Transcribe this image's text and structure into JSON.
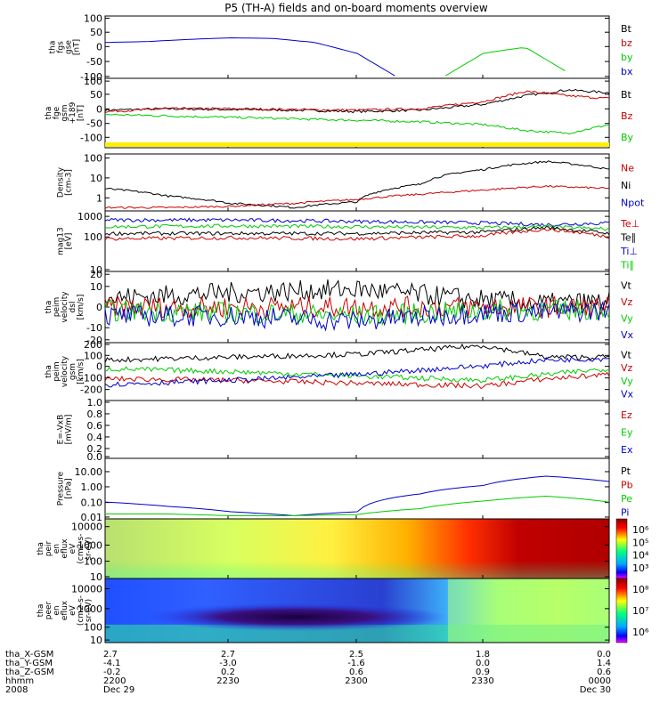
{
  "title": "P5 (TH-A) fields and on-board moments overview",
  "time_axis": {
    "ticks": [
      "2200",
      "2230",
      "2300",
      "2330",
      "0000"
    ],
    "rows": [
      {
        "label": "tha_X-GSM",
        "values": [
          "2.7",
          "2.7",
          "2.5",
          "1.8",
          "0.0"
        ]
      },
      {
        "label": "tha_Y-GSM",
        "values": [
          "-4.1",
          "-3.0",
          "-1.6",
          "0.0",
          "1.4"
        ]
      },
      {
        "label": "tha_Z-GSM",
        "values": [
          "-0.2",
          "0.2",
          "0.6",
          "0.9",
          "0.6"
        ]
      },
      {
        "label": "hhmm",
        "values": [
          "2200",
          "2230",
          "2300",
          "2330",
          "0000"
        ]
      },
      {
        "label": "2008",
        "values": [
          "Dec 29",
          "",
          "",
          "",
          "Dec 30"
        ]
      }
    ]
  },
  "panels": [
    {
      "id": "fgs",
      "ylabel": [
        "tha",
        "fgs",
        "gse",
        "[nT]"
      ],
      "ticks": [
        "100",
        "50",
        "0",
        "-50",
        "-100"
      ],
      "legend": [
        {
          "text": "Bt",
          "color": "#000000"
        },
        {
          "text": "bz",
          "color": "#cc0000"
        },
        {
          "text": "by",
          "color": "#00cc00"
        },
        {
          "text": "bx",
          "color": "#0000cc"
        }
      ]
    },
    {
      "id": "fge",
      "ylabel": [
        "tha",
        "fge",
        "gsm",
        "+189",
        "[nT]"
      ],
      "ticks": [
        "100",
        "50",
        "0",
        "-50",
        "-100"
      ],
      "legend": [
        {
          "text": "Bt",
          "color": "#000000"
        },
        {
          "text": "Bz",
          "color": "#cc0000"
        },
        {
          "text": "By",
          "color": "#00cc00"
        }
      ]
    },
    {
      "id": "density",
      "ylabel": [
        "Density",
        "[cm-3]"
      ],
      "ticks": [
        "100",
        "10",
        "1"
      ],
      "legend": [
        {
          "text": "Ne",
          "color": "#cc0000"
        },
        {
          "text": "Ni",
          "color": "#000000"
        },
        {
          "text": "Npot",
          "color": "#0000cc"
        }
      ]
    },
    {
      "id": "temp",
      "ylabel": [
        "mag13",
        "[eV]"
      ],
      "ticks": [
        "1000",
        "100",
        "10"
      ],
      "legend": [
        {
          "text": "Te⊥",
          "color": "#cc0000"
        },
        {
          "text": "Te∥",
          "color": "#000000"
        },
        {
          "text": "Ti⊥",
          "color": "#0000cc"
        },
        {
          "text": "Ti∥",
          "color": "#00cc00"
        }
      ]
    },
    {
      "id": "vel_e",
      "ylabel": [
        "tha",
        "peim",
        "velocity",
        "dsl",
        "[km/s]"
      ],
      "ticks": [
        "20",
        "10",
        "0",
        "-10",
        "-20"
      ],
      "legend": [
        {
          "text": "Vt",
          "color": "#000000"
        },
        {
          "text": "Vz",
          "color": "#cc0000"
        },
        {
          "text": "Vy",
          "color": "#00cc00"
        },
        {
          "text": "Vx",
          "color": "#0000cc"
        }
      ]
    },
    {
      "id": "vel_i",
      "ylabel": [
        "tha",
        "peim",
        "velocity",
        "gsm",
        "[km/s]"
      ],
      "ticks": [
        "200",
        "100",
        "0",
        "-100",
        "-200"
      ],
      "legend": [
        {
          "text": "Vt",
          "color": "#000000"
        },
        {
          "text": "Vz",
          "color": "#cc0000"
        },
        {
          "text": "Vy",
          "color": "#00cc00"
        },
        {
          "text": "Vx",
          "color": "#0000cc"
        }
      ]
    },
    {
      "id": "efield",
      "ylabel": [
        "E=-VxB",
        "[mV/m]"
      ],
      "ticks": [
        "1.0",
        "0.8",
        "0.6",
        "0.4",
        "0.2",
        "0.0"
      ],
      "legend": [
        {
          "text": "Ez",
          "color": "#cc0000"
        },
        {
          "text": "Ey",
          "color": "#00cc00"
        },
        {
          "text": "Ex",
          "color": "#0000cc"
        }
      ]
    },
    {
      "id": "pressure",
      "ylabel": [
        "Pressure",
        "[nPa]"
      ],
      "ticks": [
        "10.00",
        "1.00",
        "0.10",
        "0.01"
      ],
      "legend": [
        {
          "text": "Pt",
          "color": "#000000"
        },
        {
          "text": "Pb",
          "color": "#cc0000"
        },
        {
          "text": "Pe",
          "color": "#00cc00"
        },
        {
          "text": "Pi",
          "color": "#0000cc"
        }
      ]
    },
    {
      "id": "ion_spec",
      "ylabel": [
        "tha",
        "peir",
        "en",
        "eflux",
        "eV",
        "(cm2-s-",
        "sr-eV)"
      ],
      "ticks": [
        "10000",
        "1000",
        "100",
        "10"
      ],
      "colorbar": [
        "10⁶",
        "10⁵",
        "10⁴",
        "10³"
      ]
    },
    {
      "id": "ele_spec",
      "ylabel": [
        "tha",
        "peer",
        "en",
        "eflux",
        "eV",
        "(cm2-s-",
        "sr-eV)"
      ],
      "ticks": [
        "10000",
        "1000",
        "100",
        "10"
      ],
      "colorbar": [
        "10⁸",
        "10⁷",
        "10⁶"
      ]
    }
  ],
  "chart_data": [
    {
      "type": "line",
      "title": "fgs",
      "x": [
        "2200",
        "2210",
        "2220",
        "2230",
        "2240",
        "2250",
        "2300",
        "2310",
        "2320",
        "2330",
        "2340",
        "2350",
        "0000"
      ],
      "series": [
        {
          "name": "bx",
          "values": [
            15,
            18,
            25,
            30,
            28,
            15,
            -20,
            -100,
            null,
            null,
            null,
            null,
            null
          ]
        },
        {
          "name": "by",
          "values": [
            null,
            null,
            null,
            null,
            null,
            null,
            null,
            null,
            -100,
            -20,
            0,
            -80,
            null
          ]
        }
      ],
      "ylim": [
        -100,
        100
      ]
    },
    {
      "type": "line",
      "title": "fge",
      "x": [
        "2200",
        "2215",
        "2230",
        "2245",
        "2300",
        "2315",
        "2330",
        "2340",
        "2350",
        "0000"
      ],
      "series": [
        {
          "name": "Bt",
          "values": [
            10,
            15,
            12,
            10,
            5,
            10,
            30,
            60,
            80,
            70
          ]
        },
        {
          "name": "Bz",
          "values": [
            5,
            15,
            15,
            12,
            10,
            15,
            40,
            75,
            60,
            50
          ]
        },
        {
          "name": "By",
          "values": [
            -5,
            -10,
            -15,
            -20,
            -25,
            -30,
            -40,
            -60,
            -70,
            -40
          ]
        }
      ],
      "ylim": [
        -120,
        120
      ]
    },
    {
      "type": "line",
      "title": "Density",
      "x": [
        "2200",
        "2215",
        "2230",
        "2245",
        "2300",
        "2315",
        "2330",
        "2345",
        "0000"
      ],
      "series": [
        {
          "name": "Ni",
          "values": [
            3,
            1.2,
            0.5,
            0.3,
            0.6,
            5,
            30,
            80,
            30
          ]
        },
        {
          "name": "Ne",
          "values": [
            0.3,
            0.3,
            0.35,
            0.5,
            0.8,
            1.5,
            2.5,
            4,
            3
          ]
        }
      ],
      "ylim": [
        0.2,
        200
      ],
      "yscale": "log"
    },
    {
      "type": "line",
      "title": "Temperature",
      "x": [
        "2200",
        "2230",
        "2300",
        "2330",
        "2345",
        "0000"
      ],
      "series": [
        {
          "name": "Ti⊥",
          "values": [
            500,
            500,
            450,
            400,
            350,
            400
          ]
        },
        {
          "name": "Ti∥",
          "values": [
            300,
            320,
            300,
            280,
            300,
            250
          ]
        },
        {
          "name": "Te∥",
          "values": [
            180,
            180,
            180,
            200,
            280,
            180
          ]
        },
        {
          "name": "Te⊥",
          "values": [
            120,
            130,
            120,
            150,
            250,
            140
          ]
        }
      ],
      "ylim": [
        10,
        1000
      ],
      "yscale": "log"
    },
    {
      "type": "line",
      "title": "Electron velocity",
      "x": [
        "2200",
        "2230",
        "2300",
        "2330",
        "2345",
        "0000"
      ],
      "series": [
        {
          "name": "Vt",
          "values": [
            5,
            8,
            10,
            4,
            2,
            3
          ]
        },
        {
          "name": "Vz",
          "values": [
            0,
            0,
            0,
            0,
            0,
            0
          ]
        },
        {
          "name": "Vy",
          "values": [
            -2,
            -3,
            -5,
            -2,
            -2,
            -1
          ]
        },
        {
          "name": "Vx",
          "values": [
            -5,
            -5,
            -8,
            -3,
            -3,
            -2
          ]
        }
      ],
      "ylim": [
        -20,
        20
      ]
    },
    {
      "type": "line",
      "title": "Ion velocity",
      "x": [
        "2200",
        "2230",
        "2300",
        "2330",
        "2345",
        "0000"
      ],
      "series": [
        {
          "name": "Vt",
          "values": [
            80,
            100,
            120,
            180,
            100,
            100
          ]
        },
        {
          "name": "Vz",
          "values": [
            -50,
            -60,
            -80,
            -100,
            -50,
            -20
          ]
        },
        {
          "name": "Vy",
          "values": [
            20,
            0,
            -30,
            -60,
            -20,
            20
          ]
        },
        {
          "name": "Vx",
          "values": [
            -90,
            -60,
            -20,
            40,
            80,
            90
          ]
        }
      ],
      "ylim": [
        -200,
        200
      ]
    },
    {
      "type": "line",
      "title": "Pressure",
      "x": [
        "2200",
        "2215",
        "2230",
        "2245",
        "2300",
        "2315",
        "2330",
        "2345",
        "0000"
      ],
      "series": [
        {
          "name": "Pi",
          "values": [
            0.07,
            0.04,
            0.02,
            0.012,
            0.02,
            0.2,
            0.6,
            2.0,
            1.0
          ]
        },
        {
          "name": "Pe",
          "values": [
            0.015,
            0.015,
            0.012,
            0.012,
            0.014,
            0.03,
            0.08,
            0.15,
            0.07
          ]
        }
      ],
      "ylim": [
        0.008,
        20
      ],
      "yscale": "log"
    }
  ]
}
